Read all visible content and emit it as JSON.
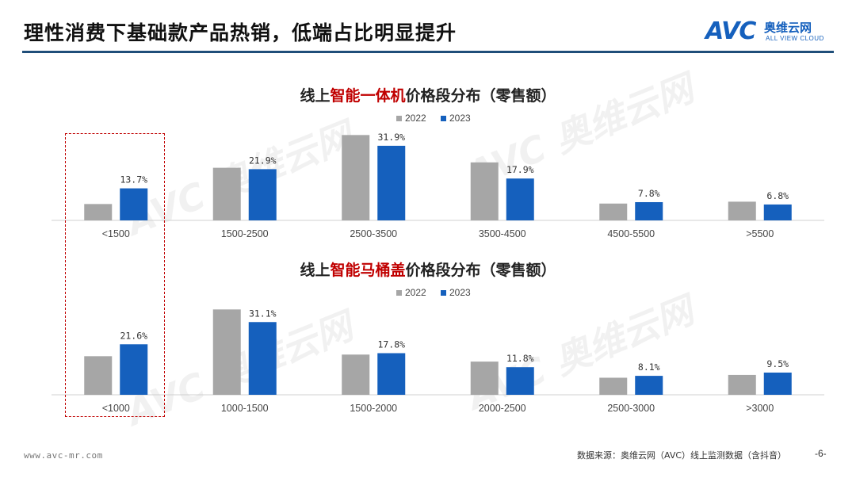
{
  "header": {
    "title": "理性消费下基础款产品热销，低端占比明显提升",
    "logo_mark": "AVC",
    "logo_cn": "奥维云网",
    "logo_en": "ALL VIEW CLOUD"
  },
  "watermark_text": "AVC 奥维云网",
  "colors": {
    "series_2022": "#A6A6A6",
    "series_2023": "#1560BD",
    "highlight": "#C00000"
  },
  "chart_data": [
    {
      "type": "bar",
      "title_prefix": "线上",
      "title_highlight": "智能一体机",
      "title_suffix": "价格段分布（零售额）",
      "categories": [
        "<1500",
        "1500-2500",
        "2500-3500",
        "3500-4500",
        "4500-5500",
        ">5500"
      ],
      "series": [
        {
          "name": "2022",
          "values": [
            7.0,
            22.5,
            36.5,
            24.8,
            7.2,
            8.0
          ]
        },
        {
          "name": "2023",
          "values": [
            13.7,
            21.9,
            31.9,
            17.9,
            7.8,
            6.8
          ],
          "labels": [
            "13.7%",
            "21.9%",
            "31.9%",
            "17.9%",
            "7.8%",
            "6.8%"
          ]
        }
      ],
      "ylim": [
        0,
        40
      ],
      "legend": "top-center"
    },
    {
      "type": "bar",
      "title_prefix": "线上",
      "title_highlight": "智能马桶盖",
      "title_suffix": "价格段分布（零售额）",
      "categories": [
        "<1000",
        "1000-1500",
        "1500-2000",
        "2000-2500",
        "2500-3000",
        ">3000"
      ],
      "series": [
        {
          "name": "2022",
          "values": [
            16.5,
            36.5,
            17.2,
            14.2,
            7.3,
            8.5
          ]
        },
        {
          "name": "2023",
          "values": [
            21.6,
            31.1,
            17.8,
            11.8,
            8.1,
            9.5
          ],
          "labels": [
            "21.6%",
            "31.1%",
            "17.8%",
            "11.8%",
            "8.1%",
            "9.5%"
          ]
        }
      ],
      "ylim": [
        0,
        40
      ],
      "legend": "top-center"
    }
  ],
  "footer": {
    "url": "www.avc-mr.com",
    "source": "数据来源：奥维云网（AVC）线上监测数据（含抖音）",
    "page": "-6-"
  }
}
